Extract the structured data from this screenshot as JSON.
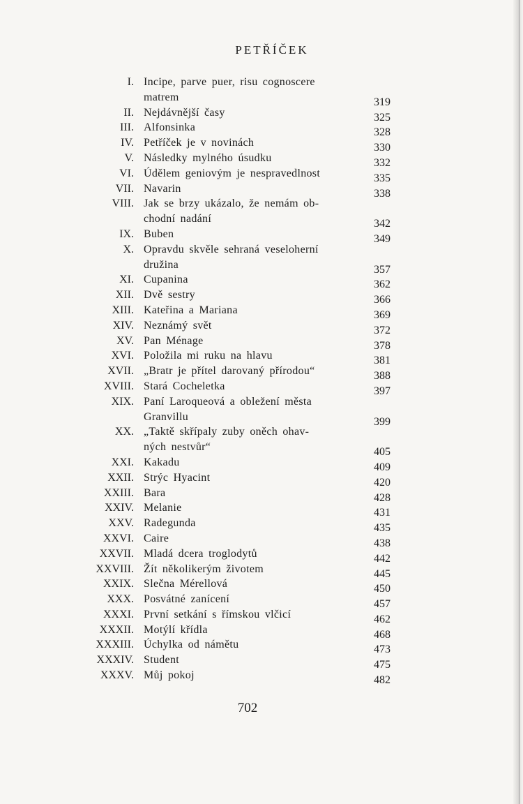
{
  "heading": "PETŘÍČEK",
  "entries": [
    {
      "num": "I.",
      "title": "Incipe, parve puer, risu cognoscere matrem",
      "page": "319"
    },
    {
      "num": "II.",
      "title": "Nejdávnější časy",
      "page": "325"
    },
    {
      "num": "III.",
      "title": "Alfonsinka",
      "page": "328"
    },
    {
      "num": "IV.",
      "title": "Petříček je v novinách",
      "page": "330"
    },
    {
      "num": "V.",
      "title": "Následky mylného úsudku",
      "page": "332"
    },
    {
      "num": "VI.",
      "title": "Údělem geniovým je nespravedlnost",
      "page": "335"
    },
    {
      "num": "VII.",
      "title": "Navarin",
      "page": "338"
    },
    {
      "num": "VIII.",
      "title": "Jak se brzy ukázalo, že nemám obchodní nadání",
      "page": "342"
    },
    {
      "num": "IX.",
      "title": "Buben",
      "page": "349"
    },
    {
      "num": "X.",
      "title": "Opravdu skvěle sehraná veselohernídružina",
      "page": "357"
    },
    {
      "num": "XI.",
      "title": "Cupanina",
      "page": "362"
    },
    {
      "num": "XII.",
      "title": "Dvě sestry",
      "page": "366"
    },
    {
      "num": "XIII.",
      "title": "Kateřina a Mariana",
      "page": "369"
    },
    {
      "num": "XIV.",
      "title": "Neznámý svět",
      "page": "372"
    },
    {
      "num": "XV.",
      "title": "Pan Ménage",
      "page": "378"
    },
    {
      "num": "XVI.",
      "title": "Položila mi ruku na hlavu",
      "page": "381"
    },
    {
      "num": "XVII.",
      "title": "„Bratr je přítel darovaný přírodou“",
      "page": "388"
    },
    {
      "num": "XVIII.",
      "title": "Stará Cocheletka",
      "page": "397"
    },
    {
      "num": "XIX.",
      "title": "Paní Laroqueová a obležení města Granvillu",
      "page": "399"
    },
    {
      "num": "XX.",
      "title": "„Taktě skřípaly zuby oněch ohavných nestvůr“",
      "page": "405"
    },
    {
      "num": "XXI.",
      "title": "Kakadu",
      "page": "409"
    },
    {
      "num": "XXII.",
      "title": "Strýc Hyacint",
      "page": "420"
    },
    {
      "num": "XXIII.",
      "title": "Bara",
      "page": "428"
    },
    {
      "num": "XXIV.",
      "title": "Melanie",
      "page": "431"
    },
    {
      "num": "XXV.",
      "title": "Radegunda",
      "page": "435"
    },
    {
      "num": "XXVI.",
      "title": "Caire",
      "page": "438"
    },
    {
      "num": "XXVII.",
      "title": "Mladá dcera troglodytů",
      "page": "442"
    },
    {
      "num": "XXVIII.",
      "title": "Žít několikerým životem",
      "page": "445"
    },
    {
      "num": "XXIX.",
      "title": "Slečna Mérellová",
      "page": "450"
    },
    {
      "num": "XXX.",
      "title": "Posvátné zanícení",
      "page": "457"
    },
    {
      "num": "XXXI.",
      "title": "První setkání s římskou vlčicí",
      "page": "462"
    },
    {
      "num": "XXXII.",
      "title": "Motýlí křídla",
      "page": "468"
    },
    {
      "num": "XXXIII.",
      "title": "Úchylka od námětu",
      "page": "473"
    },
    {
      "num": "XXXIV.",
      "title": "Student",
      "page": "475"
    },
    {
      "num": "XXXV.",
      "title": "Můj pokoj",
      "page": "482"
    }
  ],
  "folio": "702"
}
